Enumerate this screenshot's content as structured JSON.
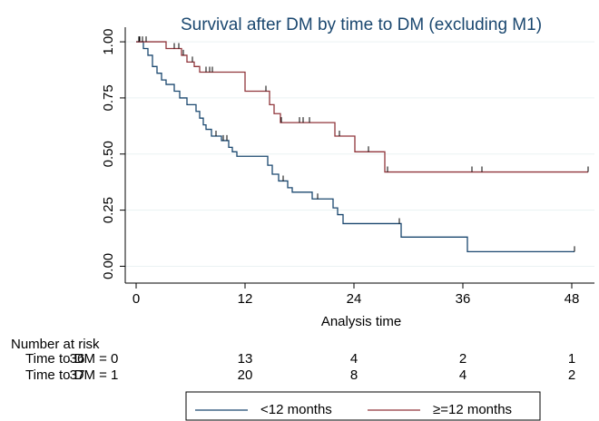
{
  "chart_data": {
    "type": "step",
    "title": "Survival after DM by time to DM (excluding M1)",
    "x_label": "Analysis time",
    "xlim": [
      -1.2,
      50.5
    ],
    "xticks": [
      0,
      12,
      24,
      36,
      48
    ],
    "ylim": [
      -0.075,
      1.065
    ],
    "yticks": [
      {
        "value": 0,
        "label": "0.00"
      },
      {
        "value": 0.25,
        "label": "0.25"
      },
      {
        "value": 0.5,
        "label": "0.50"
      },
      {
        "value": 0.75,
        "label": "0.75"
      },
      {
        "value": 1,
        "label": "1.00"
      }
    ],
    "grid": true,
    "series": [
      {
        "name": "<12 months",
        "color": "#1a476f",
        "x": [
          0,
          0.8,
          1.3,
          1.8,
          2.3,
          2.8,
          3.3,
          4.2,
          4.8,
          5.6,
          6.6,
          7.0,
          7.4,
          7.7,
          8.3,
          9.4,
          10.2,
          10.6,
          11.1,
          14.5,
          15.0,
          15.7,
          16.7,
          17.2,
          19.4,
          21.7,
          22.2,
          22.8,
          29.2,
          36.5,
          48.3
        ],
        "values": [
          1.0,
          0.97,
          0.94,
          0.89,
          0.86,
          0.83,
          0.81,
          0.78,
          0.75,
          0.72,
          0.69,
          0.66,
          0.63,
          0.61,
          0.58,
          0.56,
          0.53,
          0.51,
          0.49,
          0.45,
          0.41,
          0.38,
          0.35,
          0.33,
          0.3,
          0.26,
          0.23,
          0.19,
          0.13,
          0.065,
          0.065
        ],
        "censored": [
          0.4,
          8.8,
          9.6,
          10.0,
          16.2,
          20.0,
          29.0,
          48.3
        ]
      },
      {
        "name": "≥=12 months",
        "color": "#90353b",
        "x": [
          0,
          3.3,
          5.0,
          5.6,
          6.4,
          7.0,
          12.0,
          14.7,
          15.2,
          15.9,
          21.9,
          24.1,
          27.4,
          49.8
        ],
        "values": [
          1.0,
          0.97,
          0.94,
          0.91,
          0.89,
          0.865,
          0.78,
          0.72,
          0.68,
          0.64,
          0.58,
          0.51,
          0.42,
          0.42
        ],
        "censored": [
          0.3,
          0.7,
          1.1,
          4.2,
          4.7,
          5.2,
          6.2,
          7.7,
          8.1,
          8.4,
          14.3,
          16.0,
          18.0,
          18.4,
          19.1,
          22.4,
          25.6,
          27.7,
          37.0,
          38.1,
          49.8
        ]
      }
    ],
    "risk_table": {
      "title": "Number at risk",
      "rows": [
        {
          "label": "Time to DM = 0",
          "values": [
            36,
            13,
            4,
            2,
            1
          ]
        },
        {
          "label": "Time to DM = 1",
          "values": [
            37,
            20,
            8,
            4,
            2
          ]
        }
      ]
    }
  }
}
